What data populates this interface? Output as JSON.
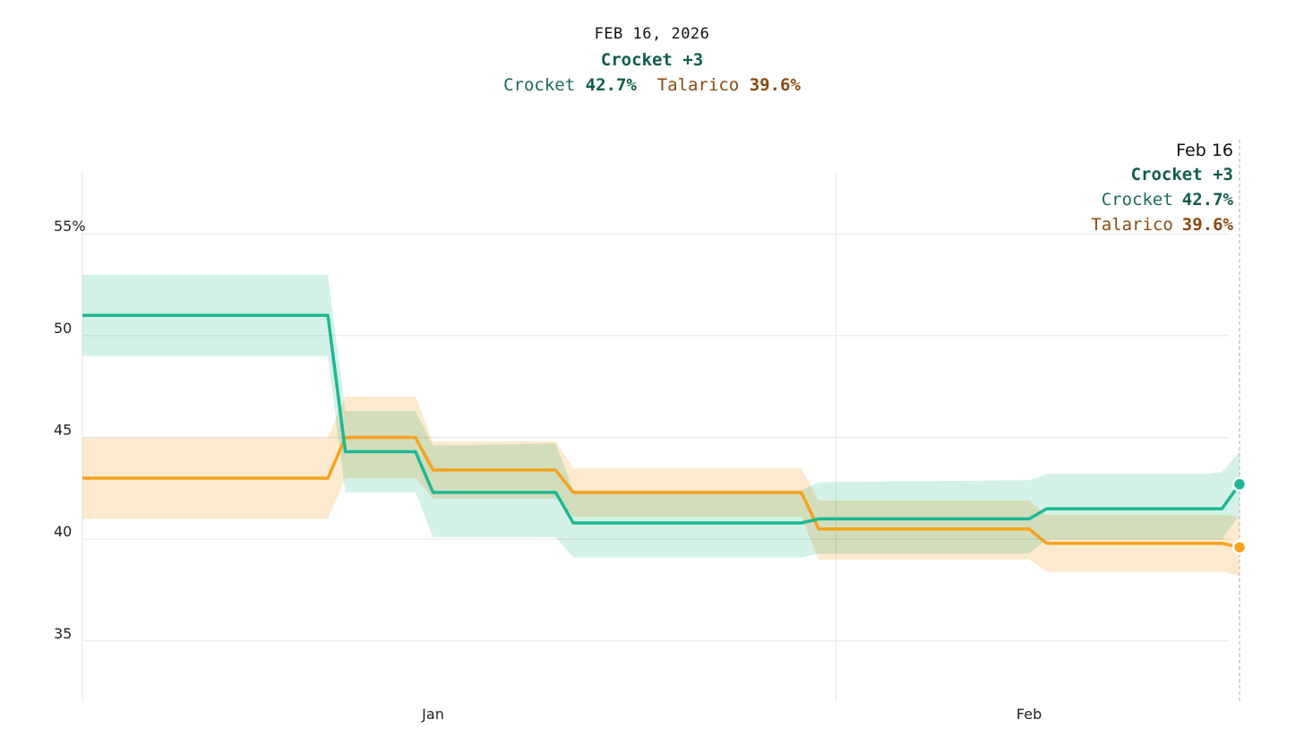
{
  "header": {
    "date": "FEB 16, 2026",
    "lead": "Crocket +3",
    "candidate_a": "Crocket",
    "value_a": "42.7%",
    "candidate_b": "Talarico",
    "value_b": "39.6%"
  },
  "tooltip": {
    "date": "Feb 16",
    "lead": "Crocket +3",
    "candidate_a": "Crocket",
    "value_a": "42.7%",
    "candidate_b": "Talarico",
    "value_b": "39.6%"
  },
  "colors": {
    "crocket": "#1db892",
    "crocket_band": "#cdeee4",
    "talarico": "#f5a31f",
    "talarico_band": "#fde6c6",
    "grid": "#e6e6e6"
  },
  "chart_data": {
    "type": "line",
    "title": "",
    "xlabel": "",
    "ylabel": "",
    "ylim": [
      32,
      58
    ],
    "xlim": [
      "2025-12-12",
      "2026-02-16"
    ],
    "y_ticks": [
      {
        "value": 55,
        "label": "55%"
      },
      {
        "value": 50,
        "label": "50"
      },
      {
        "value": 45,
        "label": "45"
      },
      {
        "value": 40,
        "label": "40"
      },
      {
        "value": 35,
        "label": "35"
      }
    ],
    "x_ticks": [
      {
        "date": "2026-01-01",
        "label": "Jan"
      },
      {
        "date": "2026-02-04",
        "label": "Feb"
      }
    ],
    "x_gridlines": [
      "2025-12-12",
      "2026-01-24"
    ],
    "grid": true,
    "legend": "none",
    "x": [
      "2025-12-12",
      "2025-12-26",
      "2025-12-27",
      "2025-12-31",
      "2026-01-01",
      "2026-01-08",
      "2026-01-09",
      "2026-01-22",
      "2026-01-23",
      "2026-02-04",
      "2026-02-05",
      "2026-02-14",
      "2026-02-15",
      "2026-02-16"
    ],
    "series": [
      {
        "name": "Crocket",
        "values": [
          51.0,
          51.0,
          44.3,
          44.3,
          42.3,
          42.3,
          40.8,
          40.8,
          41.0,
          41.0,
          41.5,
          41.5,
          41.5,
          42.7
        ],
        "upper": [
          53.0,
          53.0,
          46.3,
          46.3,
          44.6,
          44.7,
          42.4,
          42.4,
          42.8,
          42.9,
          43.2,
          43.2,
          43.3,
          44.3
        ],
        "lower": [
          49.0,
          49.0,
          42.3,
          42.3,
          40.1,
          40.1,
          39.1,
          39.1,
          39.3,
          39.3,
          40.0,
          40.0,
          40.0,
          41.2
        ]
      },
      {
        "name": "Talarico",
        "values": [
          43.0,
          43.0,
          45.0,
          45.0,
          43.4,
          43.4,
          42.3,
          42.3,
          40.5,
          40.5,
          39.8,
          39.8,
          39.8,
          39.6
        ],
        "upper": [
          45.0,
          45.0,
          47.0,
          47.0,
          44.8,
          44.8,
          43.5,
          43.5,
          41.9,
          41.9,
          41.2,
          41.2,
          41.2,
          41.1
        ],
        "lower": [
          41.0,
          41.0,
          43.0,
          43.0,
          42.0,
          42.0,
          41.1,
          41.1,
          39.0,
          39.0,
          38.4,
          38.4,
          38.4,
          38.2
        ]
      }
    ]
  }
}
